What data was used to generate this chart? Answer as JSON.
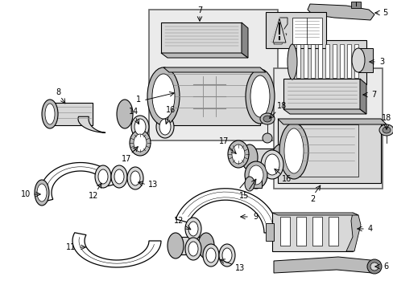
{
  "bg_color": "#ffffff",
  "line_color": "#000000",
  "figsize": [
    4.89,
    3.6
  ],
  "dpi": 100,
  "gray_light": "#d8d8d8",
  "gray_mid": "#bbbbbb",
  "gray_dark": "#888888",
  "box_bg": "#ebebeb"
}
